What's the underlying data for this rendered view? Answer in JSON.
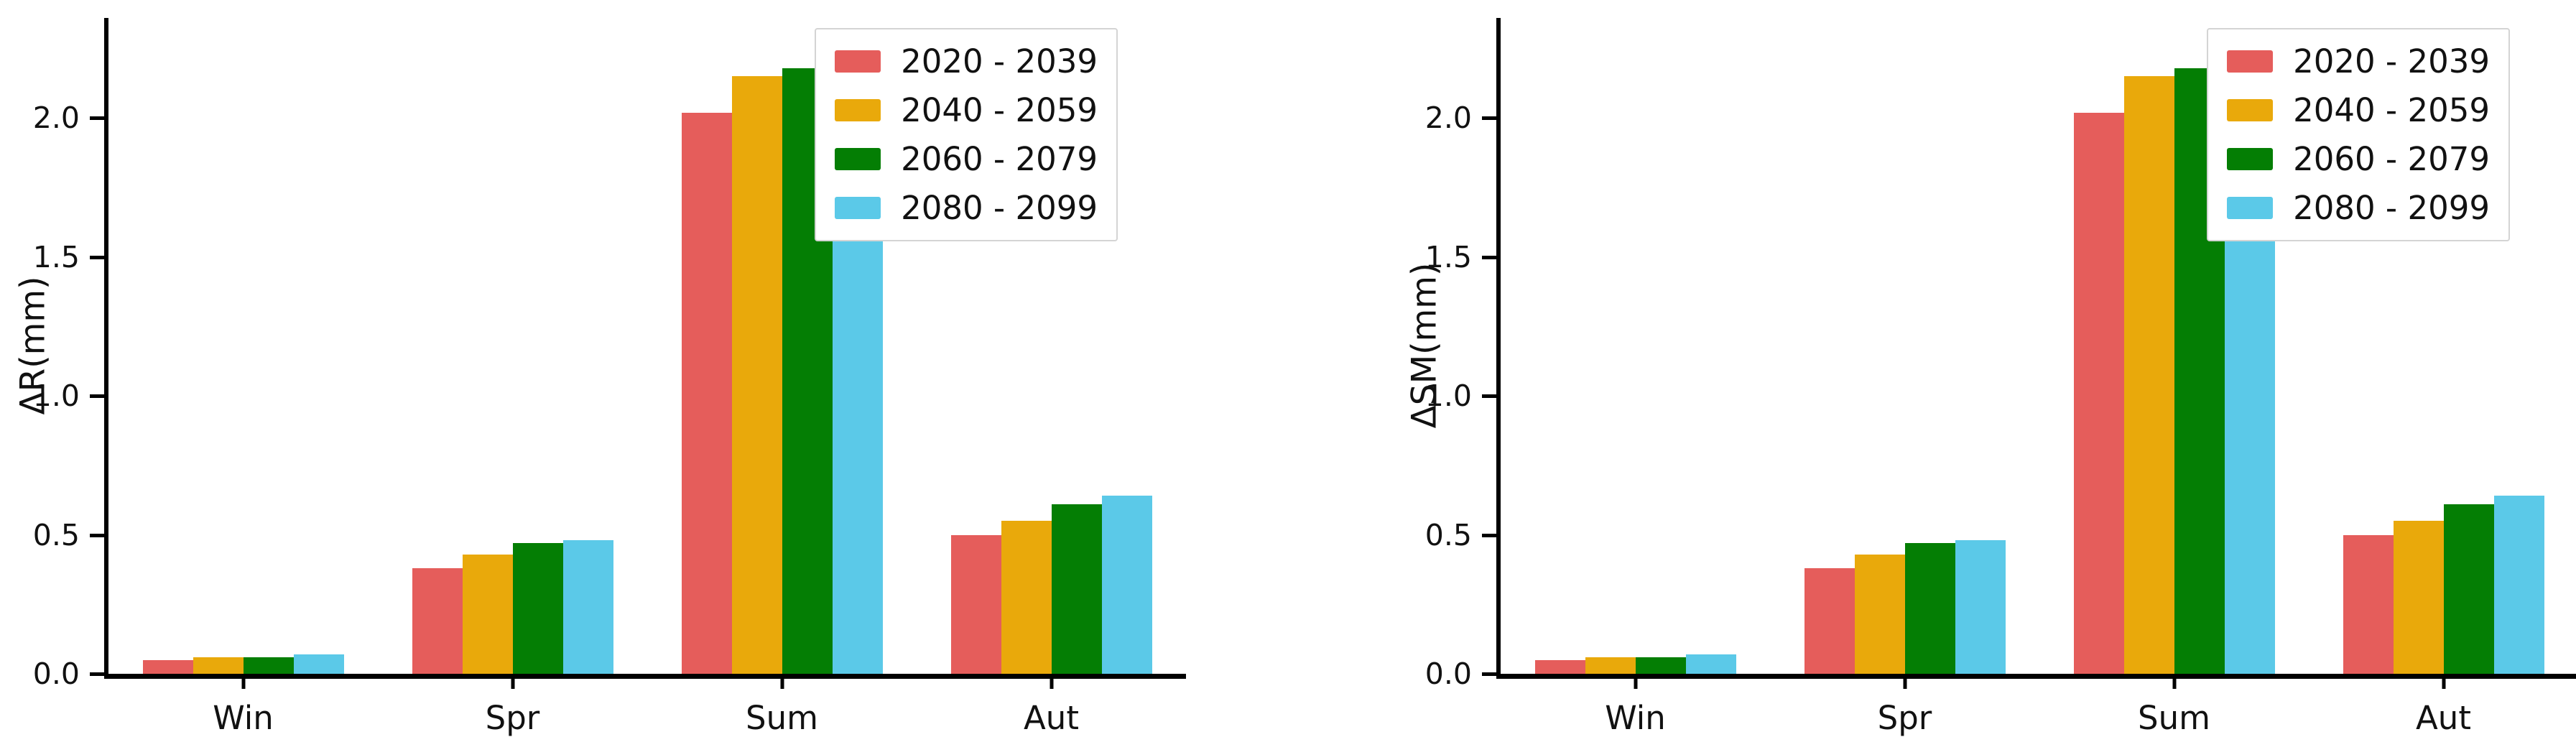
{
  "figure": {
    "background": "#ffffff"
  },
  "chart_data": [
    {
      "type": "bar",
      "title": "",
      "xlabel": "",
      "ylabel": "ΔR(mm)",
      "categories": [
        "Win",
        "Spr",
        "Sum",
        "Aut"
      ],
      "series": [
        {
          "name": "2020 - 2039",
          "color": "#E55D5B",
          "values": [
            0.05,
            0.38,
            2.02,
            0.5
          ]
        },
        {
          "name": "2040 - 2059",
          "color": "#E9A90B",
          "values": [
            0.06,
            0.43,
            2.15,
            0.55
          ]
        },
        {
          "name": "2060 - 2079",
          "color": "#047E04",
          "values": [
            0.06,
            0.47,
            2.18,
            0.61
          ]
        },
        {
          "name": "2080 - 2099",
          "color": "#5BC9E8",
          "values": [
            0.07,
            0.48,
            2.27,
            0.64
          ]
        }
      ],
      "ylim": [
        0,
        2.36
      ],
      "yticks": [
        0.0,
        0.5,
        1.0,
        1.5,
        2.0
      ],
      "legend_position": "upper right",
      "grid": false
    },
    {
      "type": "bar",
      "title": "",
      "xlabel": "",
      "ylabel": "ΔSM(mm)",
      "categories": [
        "Win",
        "Spr",
        "Sum",
        "Aut"
      ],
      "series": [
        {
          "name": "2020 - 2039",
          "color": "#E55D5B",
          "values": [
            0.05,
            0.38,
            2.02,
            0.5
          ]
        },
        {
          "name": "2040 - 2059",
          "color": "#E9A90B",
          "values": [
            0.06,
            0.43,
            2.15,
            0.55
          ]
        },
        {
          "name": "2060 - 2079",
          "color": "#047E04",
          "values": [
            0.06,
            0.47,
            2.18,
            0.61
          ]
        },
        {
          "name": "2080 - 2099",
          "color": "#5BC9E8",
          "values": [
            0.07,
            0.48,
            2.27,
            0.64
          ]
        }
      ],
      "ylim": [
        0,
        2.36
      ],
      "yticks": [
        0.0,
        0.5,
        1.0,
        1.5,
        2.0
      ],
      "legend_position": "upper right",
      "grid": false
    }
  ]
}
